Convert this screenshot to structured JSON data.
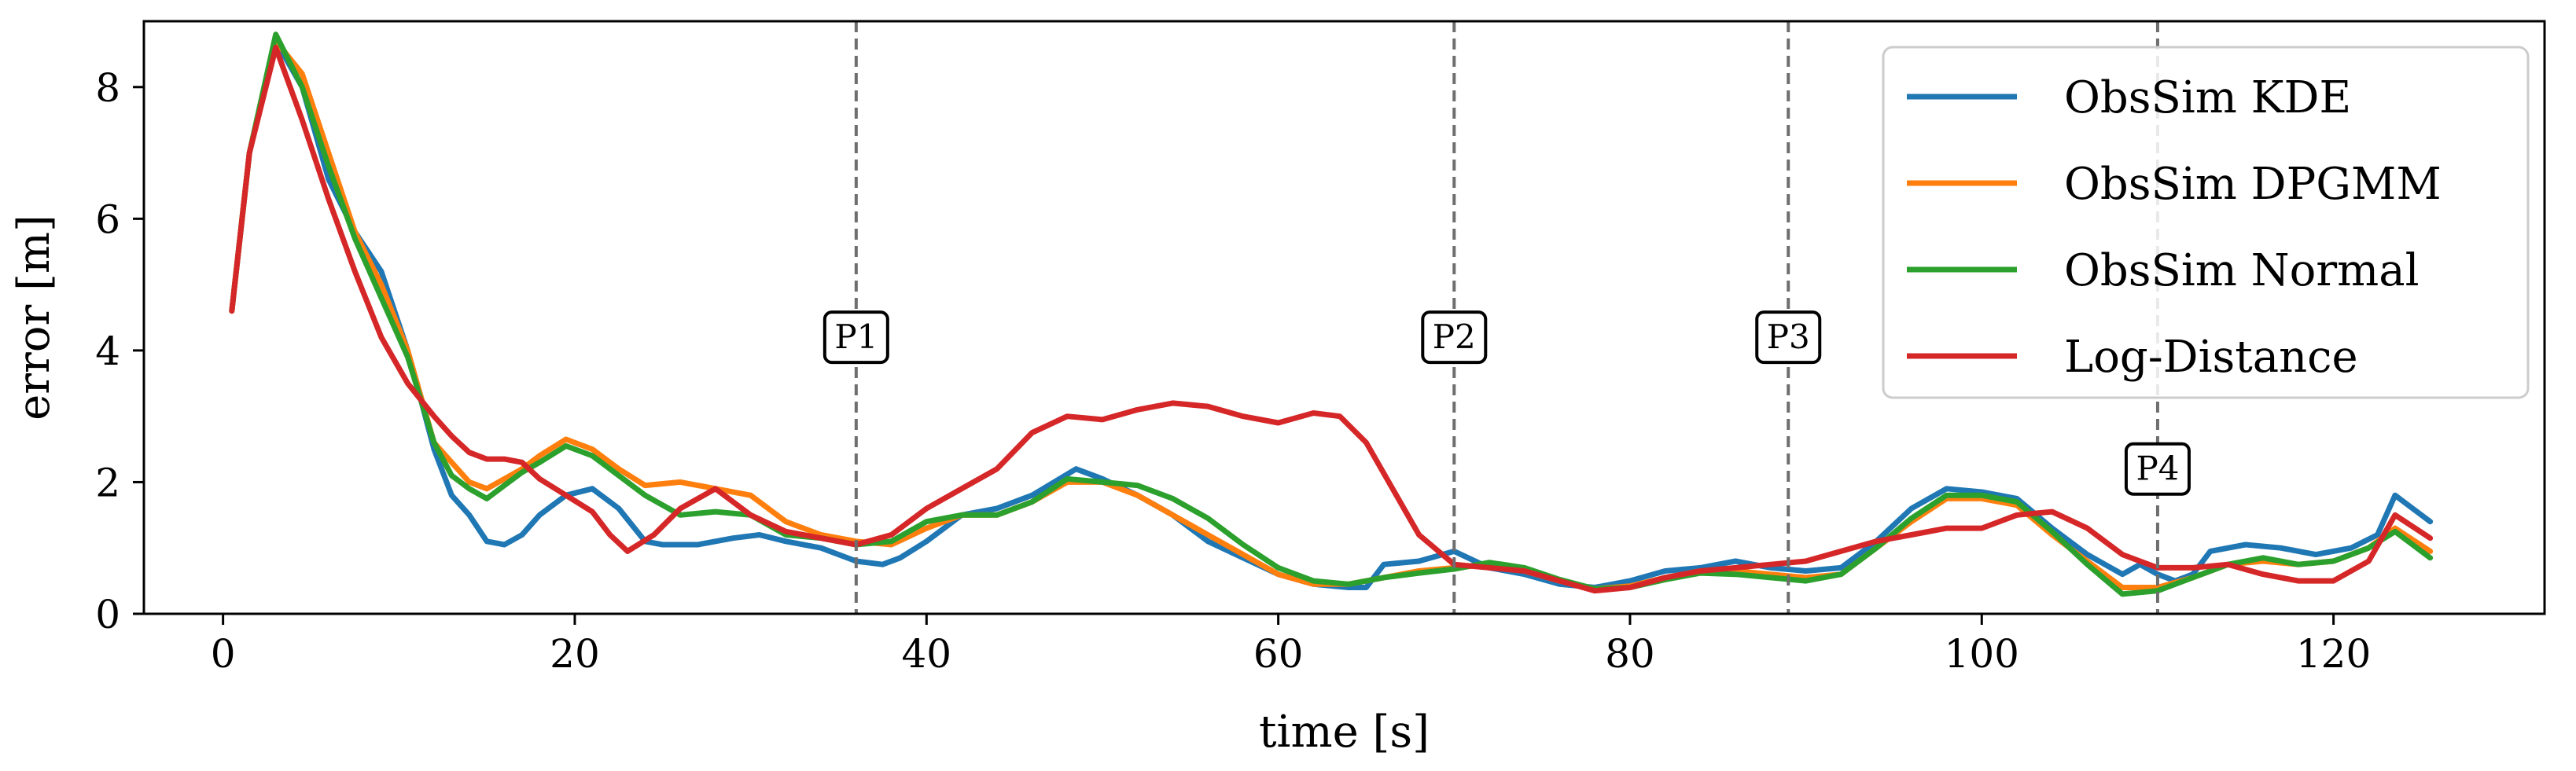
{
  "chart_data": {
    "type": "line",
    "title": "",
    "xlabel": "time [s]",
    "ylabel": "error [m]",
    "xlim": [
      -4.5,
      132
    ],
    "ylim": [
      0,
      9
    ],
    "xticks": [
      0,
      20,
      40,
      60,
      80,
      100,
      120
    ],
    "yticks": [
      0,
      2,
      4,
      6,
      8
    ],
    "grid": false,
    "legend_position": "top-right",
    "markers": [
      {
        "label": "P1",
        "x": 36,
        "label_y": 4.2
      },
      {
        "label": "P2",
        "x": 70,
        "label_y": 4.2
      },
      {
        "label": "P3",
        "x": 89,
        "label_y": 4.2
      },
      {
        "label": "P4",
        "x": 110,
        "label_y": 2.2
      }
    ],
    "series": [
      {
        "name": "ObsSim KDE",
        "color": "#1f77b4",
        "x": [
          0.5,
          1.5,
          3,
          4.5,
          6,
          7.5,
          9,
          10.5,
          12,
          13,
          14,
          15,
          16,
          17,
          18,
          19.5,
          21,
          22.5,
          24,
          25,
          27,
          29,
          30.5,
          32,
          34,
          36,
          37.5,
          38.5,
          40,
          42,
          44,
          46,
          48.5,
          50,
          52,
          54,
          56,
          58,
          60,
          62,
          64,
          65,
          66,
          68,
          70,
          72,
          74,
          76,
          78,
          80,
          82,
          84,
          86,
          88,
          90,
          92,
          94,
          96,
          98,
          100,
          102,
          104,
          106,
          108,
          109,
          110,
          111,
          112,
          113,
          115,
          117,
          119,
          121,
          122.5,
          123.5,
          124.5,
          125.5
        ],
        "values": [
          4.6,
          7.0,
          8.7,
          8.0,
          6.6,
          5.8,
          5.2,
          4.0,
          2.5,
          1.8,
          1.5,
          1.1,
          1.05,
          1.2,
          1.5,
          1.8,
          1.9,
          1.6,
          1.1,
          1.05,
          1.05,
          1.15,
          1.2,
          1.1,
          1.0,
          0.8,
          0.75,
          0.85,
          1.1,
          1.5,
          1.6,
          1.8,
          2.2,
          2.05,
          1.8,
          1.5,
          1.1,
          0.85,
          0.6,
          0.45,
          0.4,
          0.4,
          0.75,
          0.8,
          0.95,
          0.7,
          0.6,
          0.45,
          0.4,
          0.5,
          0.65,
          0.7,
          0.8,
          0.7,
          0.65,
          0.7,
          1.1,
          1.6,
          1.9,
          1.85,
          1.75,
          1.3,
          0.9,
          0.6,
          0.75,
          0.6,
          0.5,
          0.6,
          0.95,
          1.05,
          1.0,
          0.9,
          1.0,
          1.2,
          1.8,
          1.6,
          1.4
        ]
      },
      {
        "name": "ObsSim DPGMM",
        "color": "#ff7f0e",
        "x": [
          0.5,
          1.5,
          3,
          4.5,
          6,
          7.5,
          9,
          10.5,
          12,
          13,
          14,
          15,
          16,
          17,
          18,
          19.5,
          21,
          22.5,
          24,
          26,
          28,
          30,
          32,
          34,
          36,
          38,
          40,
          42,
          44,
          46,
          48,
          50,
          52,
          54,
          56,
          58,
          60,
          62,
          64,
          66,
          68,
          70,
          72,
          74,
          76,
          78,
          80,
          82,
          84,
          86,
          88,
          90,
          92,
          94,
          96,
          98,
          100,
          102,
          104,
          106,
          108,
          110,
          112,
          114,
          116,
          118,
          120,
          122,
          123.5,
          125.5
        ],
        "values": [
          4.6,
          7.0,
          8.7,
          8.2,
          7.0,
          5.8,
          5.0,
          4.0,
          2.6,
          2.3,
          2.0,
          1.9,
          2.05,
          2.2,
          2.4,
          2.65,
          2.5,
          2.2,
          1.95,
          2.0,
          1.9,
          1.8,
          1.4,
          1.2,
          1.1,
          1.05,
          1.3,
          1.5,
          1.5,
          1.7,
          2.0,
          2.0,
          1.8,
          1.5,
          1.2,
          0.9,
          0.6,
          0.45,
          0.45,
          0.55,
          0.65,
          0.7,
          0.75,
          0.65,
          0.5,
          0.38,
          0.42,
          0.55,
          0.65,
          0.65,
          0.6,
          0.55,
          0.6,
          1.0,
          1.4,
          1.75,
          1.75,
          1.65,
          1.2,
          0.8,
          0.4,
          0.4,
          0.55,
          0.75,
          0.8,
          0.75,
          0.8,
          1.0,
          1.3,
          0.95
        ]
      },
      {
        "name": "ObsSim Normal",
        "color": "#2ca02c",
        "x": [
          0.5,
          1.5,
          3,
          4.5,
          6,
          7.5,
          9,
          10.5,
          12,
          13,
          14,
          15,
          16,
          17,
          18,
          19.5,
          21,
          22.5,
          24,
          26,
          28,
          30,
          32,
          34,
          36,
          38,
          40,
          42,
          44,
          46,
          48,
          50,
          52,
          54,
          56,
          58,
          60,
          62,
          64,
          66,
          68,
          70,
          72,
          74,
          76,
          78,
          80,
          82,
          84,
          86,
          88,
          90,
          92,
          94,
          96,
          98,
          100,
          102,
          104,
          106,
          108,
          110,
          112,
          114,
          116,
          118,
          120,
          122,
          123.5,
          125.5
        ],
        "values": [
          4.6,
          7.0,
          8.8,
          8.0,
          6.8,
          5.7,
          4.8,
          3.9,
          2.6,
          2.1,
          1.9,
          1.75,
          1.95,
          2.15,
          2.3,
          2.55,
          2.4,
          2.1,
          1.8,
          1.5,
          1.55,
          1.5,
          1.2,
          1.15,
          1.05,
          1.1,
          1.4,
          1.5,
          1.5,
          1.7,
          2.05,
          2.0,
          1.95,
          1.75,
          1.45,
          1.05,
          0.7,
          0.5,
          0.45,
          0.55,
          0.62,
          0.68,
          0.78,
          0.7,
          0.52,
          0.38,
          0.4,
          0.52,
          0.62,
          0.6,
          0.55,
          0.5,
          0.6,
          1.0,
          1.45,
          1.8,
          1.8,
          1.7,
          1.25,
          0.75,
          0.3,
          0.35,
          0.55,
          0.75,
          0.85,
          0.75,
          0.8,
          1.0,
          1.25,
          0.85
        ]
      },
      {
        "name": "Log-Distance",
        "color": "#d62728",
        "x": [
          0.5,
          1.5,
          3,
          4.5,
          6,
          7.5,
          9,
          10.5,
          12,
          13,
          14,
          15,
          16,
          17,
          18,
          19.5,
          21,
          22,
          23,
          24.5,
          26,
          28,
          30,
          32,
          34,
          36,
          38,
          40,
          42,
          44,
          46,
          48,
          50,
          52,
          54,
          56,
          58,
          60,
          62,
          63.5,
          65,
          66.5,
          68,
          70,
          72,
          74,
          76,
          78,
          80,
          82,
          84,
          86,
          88,
          90,
          92,
          94,
          96,
          98,
          100,
          102,
          104,
          106,
          108,
          110,
          112,
          114,
          116,
          118,
          120,
          122,
          123.5,
          125.5
        ],
        "values": [
          4.6,
          7.0,
          8.6,
          7.5,
          6.3,
          5.2,
          4.2,
          3.5,
          3.0,
          2.7,
          2.45,
          2.35,
          2.35,
          2.3,
          2.05,
          1.8,
          1.55,
          1.2,
          0.95,
          1.2,
          1.6,
          1.9,
          1.5,
          1.25,
          1.15,
          1.05,
          1.2,
          1.6,
          1.9,
          2.2,
          2.75,
          3.0,
          2.95,
          3.1,
          3.2,
          3.15,
          3.0,
          2.9,
          3.05,
          3.0,
          2.6,
          1.9,
          1.2,
          0.75,
          0.7,
          0.65,
          0.5,
          0.35,
          0.4,
          0.55,
          0.65,
          0.7,
          0.75,
          0.8,
          0.95,
          1.1,
          1.2,
          1.3,
          1.3,
          1.5,
          1.55,
          1.3,
          0.9,
          0.7,
          0.7,
          0.75,
          0.6,
          0.5,
          0.5,
          0.8,
          1.5,
          1.15
        ]
      }
    ]
  }
}
